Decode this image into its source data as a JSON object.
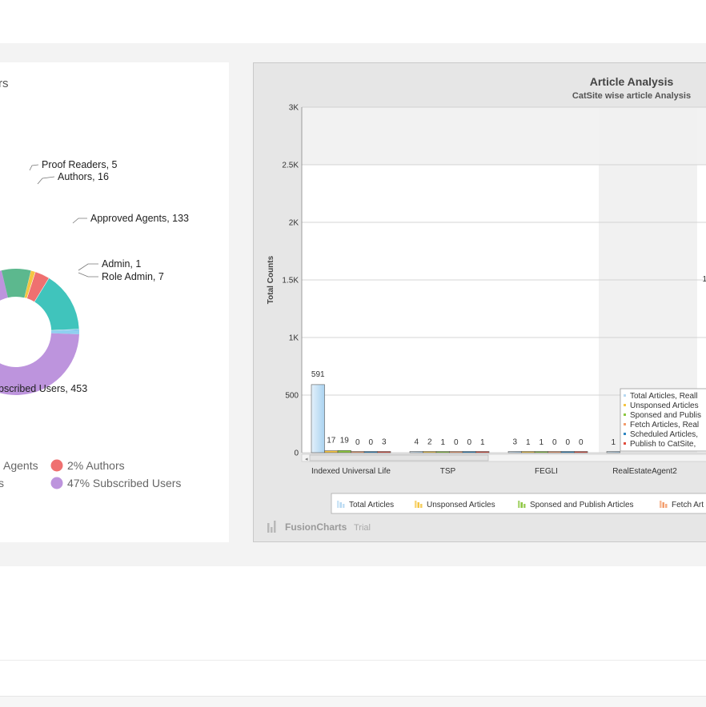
{
  "pie_panel": {
    "title_fragment": "rs",
    "legend": [
      {
        "text": "Agents",
        "color": "#40c4bc"
      },
      {
        "text": "2% Authors",
        "color": "#ef7070"
      },
      {
        "text": "s",
        "color": "#bd94dd"
      },
      {
        "text": "47% Subscribed Users",
        "color": "#bd94dd"
      }
    ]
  },
  "chart_data": [
    {
      "type": "pie",
      "subtype": "doughnut",
      "slices": [
        {
          "label": "Subscribed Users",
          "value": 453,
          "color": "#bd94dd",
          "label_text": "bscribed Users, 453"
        },
        {
          "label": "Approved Agents",
          "value": 133,
          "color": "#40c4bc",
          "label_text": "Approved Agents, 133"
        },
        {
          "label": "Authors",
          "value": 16,
          "color": "#ef7070",
          "label_text": "Authors, 16"
        },
        {
          "label": "Proof Readers",
          "value": 5,
          "color": "#f5c542",
          "label_text": "Proof Readers, 5"
        },
        {
          "label": "Admin",
          "value": 1,
          "color": "#5aa8e8",
          "label_text": "Admin, 1"
        },
        {
          "label": "Role Admin",
          "value": 7,
          "color": "#8fd0f0",
          "label_text": "Role Admin, 7"
        }
      ],
      "legend_placement": "bottom"
    },
    {
      "type": "bar",
      "title": "Article Analysis",
      "subtitle": "CatSite wise article Analysis",
      "ylabel": "Total Counts",
      "ylim": [
        0,
        3000
      ],
      "yticks": [
        "0",
        "500",
        "1K",
        "1.5K",
        "2K",
        "2.5K",
        "3K"
      ],
      "categories": [
        "Indexed Universal Life",
        "TSP",
        "FEGLI",
        "RealEstateAgent2"
      ],
      "series": [
        {
          "name": "Total Articles",
          "values": [
            591,
            4,
            3,
            1
          ],
          "color": "#b7d9f2"
        },
        {
          "name": "Unsponsed Articles",
          "values": [
            17,
            2,
            1,
            null
          ],
          "color": "#f5c542"
        },
        {
          "name": "Sponsed and Publish Articles",
          "values": [
            19,
            1,
            1,
            null
          ],
          "color": "#8cc63f"
        },
        {
          "name": "Fetch Articles",
          "values": [
            0,
            0,
            0,
            null
          ],
          "color": "#f39c6b"
        },
        {
          "name": "Scheduled Articles",
          "values": [
            0,
            0,
            0,
            null
          ],
          "color": "#2e86c1"
        },
        {
          "name": "Publish to CatSite",
          "values": [
            3,
            1,
            0,
            null
          ],
          "color": "#e04c3c"
        }
      ],
      "data_labels": {
        "Indexed Universal Life": [
          "591",
          "17",
          "19",
          "0",
          "0",
          "3"
        ],
        "TSP": [
          "4",
          "2",
          "1",
          "0",
          "0",
          "1"
        ],
        "FEGLI": [
          "3",
          "1",
          "1",
          "0",
          "0",
          "0"
        ],
        "RealEstateAgent2": [
          "1"
        ]
      },
      "right_edge_label": "1",
      "grid": true,
      "legend_placement": "bottom",
      "legend": [
        "Total Articles",
        "Unsponsed Articles",
        "Sponsed and Publish Articles",
        "Fetch Art"
      ],
      "inner_legend_placement": "bottom-right",
      "inner_legend": [
        "Total Articles, Reall",
        "Unsponsed Articles",
        "Sponsed and Publis",
        "Fetch Articles, Real",
        "Scheduled Articles,",
        "Publish to CatSite,"
      ],
      "watermark": "FusionCharts",
      "watermark_suffix": "Trial"
    }
  ]
}
